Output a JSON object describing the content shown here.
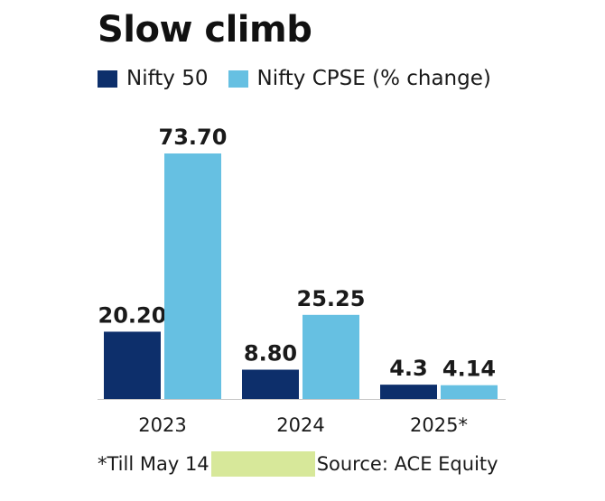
{
  "chart_data": {
    "type": "bar",
    "title": "Slow climb",
    "categories": [
      "2023",
      "2024",
      "2025*"
    ],
    "series": [
      {
        "name": "Nifty 50",
        "values": [
          20.2,
          8.8,
          4.3
        ],
        "labels": [
          "20.20",
          "8.80",
          "4.3"
        ],
        "color": "#0d2f6b"
      },
      {
        "name": "Nifty CPSE (% change)",
        "values": [
          73.7,
          25.25,
          4.14
        ],
        "labels": [
          "73.70",
          "25.25",
          "4.14"
        ],
        "color": "#66c0e2"
      }
    ],
    "ylim": [
      0,
      73.7
    ],
    "grid": false,
    "legend": "top-left"
  },
  "footer": {
    "note": "*Till May 14",
    "source": "Source: ACE Equity"
  }
}
